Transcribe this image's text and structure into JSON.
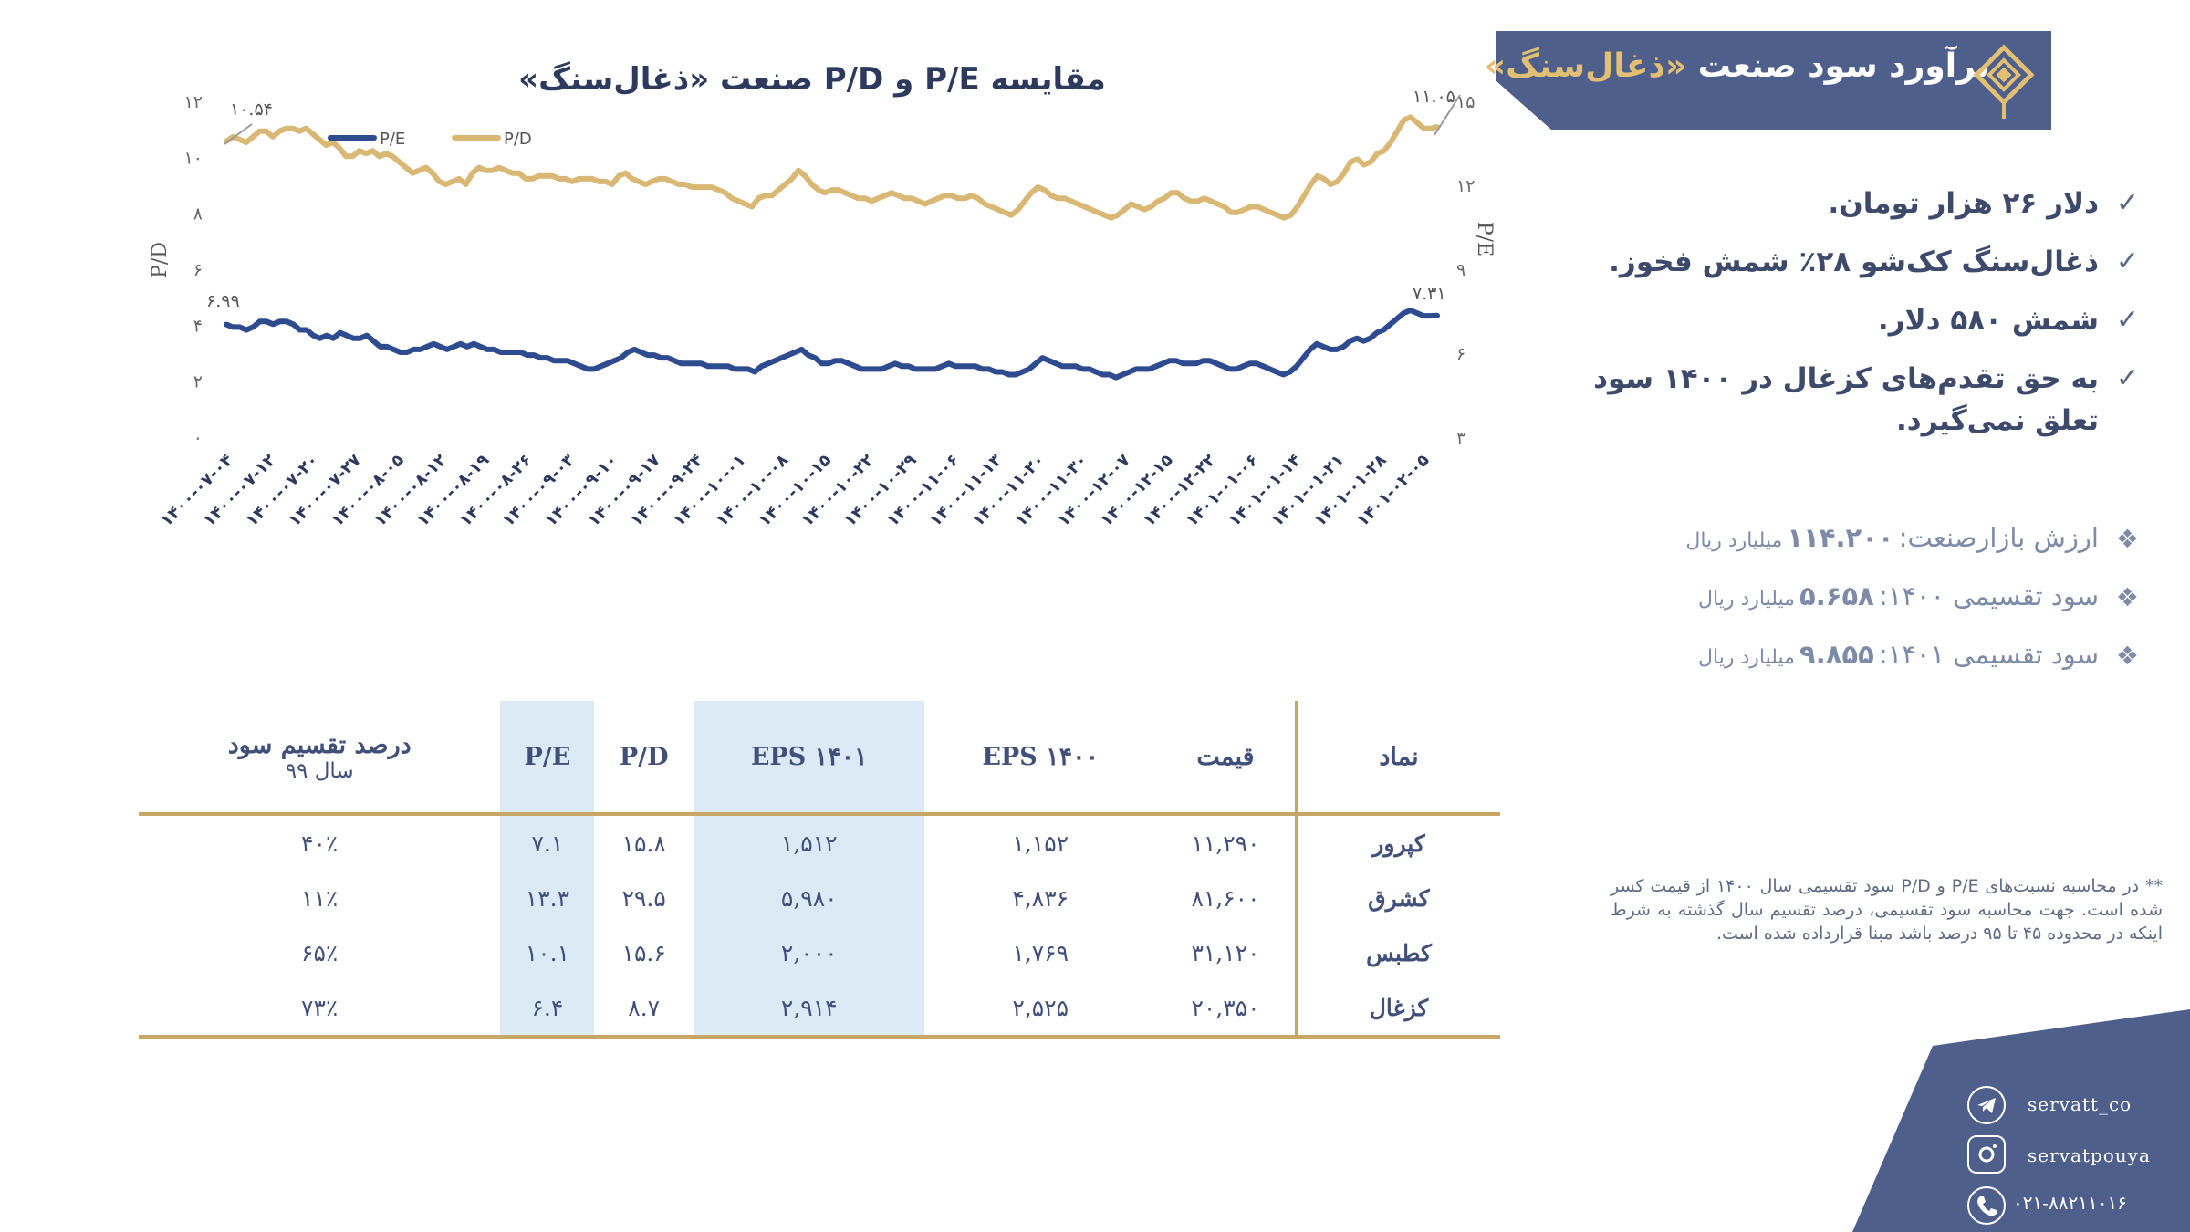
{
  "chart_data": {
    "type": "line",
    "title": "مقایسه P/E و P/D صنعت «ذغال‌سنگ»",
    "ylabel_left": "P/D",
    "ylabel_right": "P/E",
    "left_ticks": [
      "۰",
      "۲",
      "۴",
      "۶",
      "۸",
      "۱۰",
      "۱۲"
    ],
    "right_ticks": [
      "۳",
      "۶",
      "۹",
      "۱۲",
      "۱۵"
    ],
    "ylim_left": [
      0,
      12
    ],
    "ylim_right": [
      3,
      15
    ],
    "x_ticks": [
      "۱۴۰۰-۰۷-۰۴",
      "۱۴۰۰-۰۷-۱۲",
      "۱۴۰۰-۰۷-۲۰",
      "۱۴۰۰-۰۷-۲۷",
      "۱۴۰۰-۰۸-۰۵",
      "۱۴۰۰-۰۸-۱۲",
      "۱۴۰۰-۰۸-۱۹",
      "۱۴۰۰-۰۸-۲۶",
      "۱۴۰۰-۰۹-۰۳",
      "۱۴۰۰-۰۹-۱۰",
      "۱۴۰۰-۰۹-۱۷",
      "۱۴۰۰-۰۹-۲۴",
      "۱۴۰۰-۱۰-۰۱",
      "۱۴۰۰-۱۰-۰۸",
      "۱۴۰۰-۱۰-۱۵",
      "۱۴۰۰-۱۰-۲۲",
      "۱۴۰۰-۱۰-۲۹",
      "۱۴۰۰-۱۱-۰۶",
      "۱۴۰۰-۱۱-۱۳",
      "۱۴۰۰-۱۱-۲۰",
      "۱۴۰۰-۱۱-۳۰",
      "۱۴۰۰-۱۲-۰۷",
      "۱۴۰۰-۱۲-۱۵",
      "۱۴۰۰-۱۲-۲۲",
      "۱۴۰۱-۰۱-۰۶",
      "۱۴۰۱-۰۱-۱۴",
      "۱۴۰۱-۰۱-۲۱",
      "۱۴۰۱-۰۱-۲۸",
      "۱۴۰۱-۰۲-۰۵"
    ],
    "legend": [
      "P/E",
      "P/D"
    ],
    "legend_position": "top-left",
    "series": [
      {
        "name": "P/D",
        "axis": "left",
        "color": "#d9b774",
        "values": [
          10.54,
          10.7,
          10.6,
          10.5,
          10.7,
          10.9,
          10.9,
          10.7,
          10.9,
          11.0,
          11.0,
          10.9,
          11.0,
          10.8,
          10.6,
          10.4,
          10.5,
          10.3,
          10.0,
          10.0,
          10.2,
          10.1,
          10.2,
          10.0,
          10.1,
          10.0,
          9.8,
          9.6,
          9.4,
          9.5,
          9.6,
          9.4,
          9.1,
          9.0,
          9.1,
          9.2,
          9.0,
          9.4,
          9.6,
          9.5,
          9.5,
          9.6,
          9.5,
          9.4,
          9.4,
          9.2,
          9.2,
          9.3,
          9.3,
          9.3,
          9.2,
          9.2,
          9.1,
          9.2,
          9.2,
          9.2,
          9.1,
          9.1,
          9.0,
          9.3,
          9.4,
          9.2,
          9.1,
          9.0,
          9.1,
          9.2,
          9.2,
          9.1,
          9.0,
          9.0,
          8.9,
          8.9,
          8.9,
          8.9,
          8.8,
          8.7,
          8.5,
          8.4,
          8.3,
          8.2,
          8.5,
          8.6,
          8.6,
          8.8,
          9.0,
          9.2,
          9.5,
          9.3,
          9.0,
          8.8,
          8.7,
          8.8,
          8.8,
          8.7,
          8.6,
          8.5,
          8.5,
          8.4,
          8.5,
          8.6,
          8.7,
          8.6,
          8.5,
          8.5,
          8.4,
          8.3,
          8.4,
          8.5,
          8.6,
          8.6,
          8.5,
          8.5,
          8.6,
          8.5,
          8.3,
          8.2,
          8.1,
          8.0,
          7.9,
          8.1,
          8.4,
          8.7,
          8.9,
          8.8,
          8.6,
          8.5,
          8.5,
          8.4,
          8.3,
          8.2,
          8.1,
          8.0,
          7.9,
          7.8,
          7.9,
          8.1,
          8.3,
          8.2,
          8.1,
          8.2,
          8.4,
          8.5,
          8.7,
          8.7,
          8.5,
          8.4,
          8.4,
          8.5,
          8.4,
          8.3,
          8.2,
          8.0,
          8.0,
          8.1,
          8.2,
          8.2,
          8.1,
          8.0,
          7.9,
          7.8,
          7.9,
          8.2,
          8.6,
          9.0,
          9.3,
          9.2,
          9.0,
          9.1,
          9.4,
          9.8,
          9.9,
          9.7,
          9.8,
          10.1,
          10.2,
          10.5,
          10.9,
          11.3,
          11.4,
          11.2,
          11.0,
          11.0,
          11.05
        ]
      },
      {
        "name": "P/E",
        "axis": "right",
        "color": "#2d4b8e",
        "values": [
          6.99,
          6.9,
          6.9,
          6.8,
          6.9,
          7.1,
          7.1,
          7.0,
          7.1,
          7.1,
          7.0,
          6.8,
          6.8,
          6.6,
          6.5,
          6.6,
          6.5,
          6.7,
          6.6,
          6.5,
          6.5,
          6.6,
          6.4,
          6.2,
          6.2,
          6.1,
          6.0,
          6.0,
          6.1,
          6.1,
          6.2,
          6.3,
          6.2,
          6.1,
          6.2,
          6.3,
          6.2,
          6.3,
          6.2,
          6.1,
          6.1,
          6.0,
          6.0,
          6.0,
          6.0,
          5.9,
          5.9,
          5.8,
          5.8,
          5.7,
          5.7,
          5.7,
          5.6,
          5.5,
          5.4,
          5.4,
          5.5,
          5.6,
          5.7,
          5.8,
          6.0,
          6.1,
          6.0,
          5.9,
          5.9,
          5.8,
          5.8,
          5.7,
          5.6,
          5.6,
          5.6,
          5.6,
          5.5,
          5.5,
          5.5,
          5.5,
          5.4,
          5.4,
          5.4,
          5.3,
          5.5,
          5.6,
          5.7,
          5.8,
          5.9,
          6.0,
          6.1,
          5.9,
          5.8,
          5.6,
          5.6,
          5.7,
          5.7,
          5.6,
          5.5,
          5.4,
          5.4,
          5.4,
          5.4,
          5.5,
          5.6,
          5.5,
          5.5,
          5.4,
          5.4,
          5.4,
          5.4,
          5.5,
          5.6,
          5.5,
          5.5,
          5.5,
          5.5,
          5.4,
          5.4,
          5.3,
          5.3,
          5.2,
          5.2,
          5.3,
          5.4,
          5.6,
          5.8,
          5.7,
          5.6,
          5.5,
          5.5,
          5.5,
          5.4,
          5.4,
          5.3,
          5.2,
          5.2,
          5.1,
          5.2,
          5.3,
          5.4,
          5.4,
          5.4,
          5.5,
          5.6,
          5.7,
          5.7,
          5.6,
          5.6,
          5.6,
          5.7,
          5.7,
          5.6,
          5.5,
          5.4,
          5.4,
          5.5,
          5.6,
          5.6,
          5.5,
          5.4,
          5.3,
          5.2,
          5.3,
          5.5,
          5.8,
          6.1,
          6.3,
          6.2,
          6.1,
          6.1,
          6.2,
          6.4,
          6.5,
          6.4,
          6.5,
          6.7,
          6.8,
          7.0,
          7.2,
          7.4,
          7.5,
          7.4,
          7.3,
          7.3,
          7.31
        ]
      }
    ],
    "annotations": {
      "pd_start": "۱۰.۵۴",
      "pd_end": "۱۱.۰۵",
      "pe_start": "۶.۹۹",
      "pe_end": "۷.۳۱"
    }
  },
  "banner": {
    "title_main": "برآورد سود صنعت ",
    "title_highlight": "«ذغال‌سنگ»"
  },
  "checklist": [
    "دلار ۲۶ هزار تومان.",
    "ذغال‌سنگ کک‌شو ۲۸٪ شمش فخوز.",
    "شمش ۵۸۰ دلار.",
    "به حق تقدم‌های کزغال در ۱۴۰۰ سود تعلق نمی‌گیرد."
  ],
  "stats": [
    {
      "label": "ارزش بازارصنعت:",
      "value": "۱۱۴.۲۰۰",
      "unit": "میلیارد ریال"
    },
    {
      "label": "سود تقسیمی ۱۴۰۰:",
      "value": "۵.۶۵۸",
      "unit": "میلیارد ریال"
    },
    {
      "label": "سود تقسیمی ۱۴۰۱:",
      "value": "۹.۸۵۵",
      "unit": "میلیارد ریال"
    }
  ],
  "table": {
    "headers": {
      "symbol": "نماد",
      "price": "قیمت",
      "eps1400": "EPS ۱۴۰۰",
      "eps1401": "EPS ۱۴۰۱",
      "pd": "P/D",
      "pe": "P/E",
      "payout": "درصد تقسیم سود",
      "payout_sub": "سال ۹۹"
    },
    "rows": [
      {
        "symbol": "کپرور",
        "price": "۱۱,۲۹۰",
        "eps1400": "۱,۱۵۲",
        "eps1401": "۱,۵۱۲",
        "pd": "۱۵.۸",
        "pe": "۷.۱",
        "payout": "۴۰٪"
      },
      {
        "symbol": "کشرق",
        "price": "۸۱,۶۰۰",
        "eps1400": "۴,۸۳۶",
        "eps1401": "۵,۹۸۰",
        "pd": "۲۹.۵",
        "pe": "۱۳.۳",
        "payout": "۱۱٪"
      },
      {
        "symbol": "کطبس",
        "price": "۳۱,۱۲۰",
        "eps1400": "۱,۷۶۹",
        "eps1401": "۲,۰۰۰",
        "pd": "۱۵.۶",
        "pe": "۱۰.۱",
        "payout": "۶۵٪"
      },
      {
        "symbol": "کزغال",
        "price": "۲۰,۳۵۰",
        "eps1400": "۲,۵۲۵",
        "eps1401": "۲,۹۱۴",
        "pd": "۸.۷",
        "pe": "۶.۴",
        "payout": "۷۳٪"
      }
    ]
  },
  "footnote": "** در محاسبه نسبت‌های P/E و P/D سود تقسیمی سال ۱۴۰۰ از قیمت کسر شده است. جهت محاسبه سود تقسیمی، درصد تقسیم سال گذشته به شرط اینکه در محدوده ۴۵ تا ۹۵ درصد باشد مبنا قرارداده شده است.",
  "social": {
    "telegram": "servatt_co",
    "instagram": "servatpouya",
    "phone": "۰۲۱-۸۸۲۱۱۰۱۶"
  },
  "colors": {
    "navy": "#4e5f8c",
    "gold": "#c8a668",
    "pe_line": "#2d4b8e",
    "pd_line": "#d9b774",
    "shade": "#dceaf6"
  }
}
